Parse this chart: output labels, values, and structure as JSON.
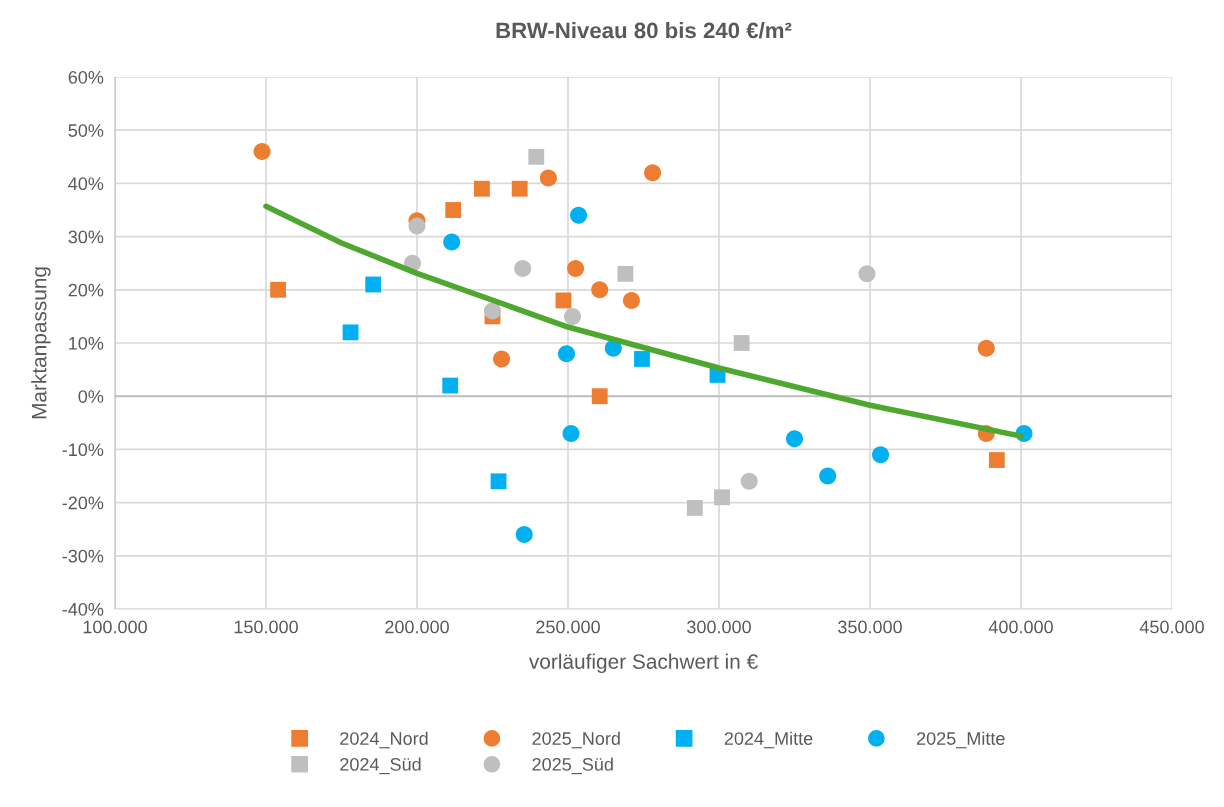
{
  "chart_data": {
    "type": "scatter",
    "title": "BRW-Niveau 80 bis 240 €/m²",
    "xlabel": "vorläufiger Sachwert in €",
    "ylabel": "Marktanpassung",
    "xlim": [
      100000,
      450000
    ],
    "xticks": [
      {
        "value": 100000,
        "label": "100.000"
      },
      {
        "value": 150000,
        "label": "150.000"
      },
      {
        "value": 200000,
        "label": "200.000"
      },
      {
        "value": 250000,
        "label": "250.000"
      },
      {
        "value": 300000,
        "label": "300.000"
      },
      {
        "value": 350000,
        "label": "350.000"
      },
      {
        "value": 400000,
        "label": "400.000"
      },
      {
        "value": 450000,
        "label": "450.000"
      }
    ],
    "ylim": [
      -40,
      60
    ],
    "yticks": [
      {
        "value": -40,
        "label": "-40%"
      },
      {
        "value": -30,
        "label": "-30%"
      },
      {
        "value": -20,
        "label": "-20%"
      },
      {
        "value": -10,
        "label": "-10%"
      },
      {
        "value": 0,
        "label": "0%"
      },
      {
        "value": 10,
        "label": "10%"
      },
      {
        "value": 20,
        "label": "20%"
      },
      {
        "value": 30,
        "label": "30%"
      },
      {
        "value": 40,
        "label": "40%"
      },
      {
        "value": 50,
        "label": "50%"
      },
      {
        "value": 60,
        "label": "60%"
      }
    ],
    "grid": true,
    "legend": "bottom",
    "series": [
      {
        "name": "2024_Nord",
        "color": "#ed7d31",
        "marker": "square",
        "x": [
          154000,
          212000,
          221500,
          234000,
          225000,
          248500,
          260500,
          392000
        ],
        "values": [
          20,
          35,
          39,
          39,
          15,
          18,
          0,
          -12
        ]
      },
      {
        "name": "2025_Nord",
        "color": "#ed7d31",
        "marker": "circle",
        "x": [
          148700,
          200000,
          243500,
          278000,
          252500,
          260500,
          271000,
          228000,
          388500,
          388500
        ],
        "values": [
          46,
          33,
          41,
          42,
          24,
          20,
          18,
          7,
          9,
          -7
        ]
      },
      {
        "name": "2024_Mitte",
        "color": "#00b0f0",
        "marker": "square",
        "x": [
          178000,
          185500,
          211000,
          227000,
          274500,
          299500
        ],
        "values": [
          12,
          21,
          2,
          -16,
          7,
          4
        ]
      },
      {
        "name": "2025_Mitte",
        "color": "#00b0f0",
        "marker": "circle",
        "x": [
          211500,
          253500,
          249500,
          265000,
          251000,
          235500,
          325000,
          336000,
          353500,
          401000
        ],
        "values": [
          29,
          34,
          8,
          9,
          -7,
          -26,
          -8,
          -15,
          -11,
          -7
        ]
      },
      {
        "name": "2024_Süd",
        "color": "#bfbfbf",
        "marker": "square",
        "x": [
          239500,
          269000,
          307500,
          292000,
          301000
        ],
        "values": [
          45,
          23,
          10,
          -21,
          -19
        ]
      },
      {
        "name": "2025_Süd",
        "color": "#bfbfbf",
        "marker": "circle",
        "x": [
          200000,
          198500,
          235000,
          225000,
          251500,
          349000,
          310000
        ],
        "values": [
          32,
          25,
          24,
          16,
          15,
          23,
          -16
        ]
      },
      {
        "type": "line",
        "color": "#4ea72e",
        "marker": "none",
        "line_style": "solid",
        "x": [
          150000,
          175000,
          200000,
          250000,
          300000,
          350000,
          400000
        ],
        "values": [
          35.7,
          28.8,
          23.1,
          13,
          5.3,
          -1.7,
          -7.5
        ]
      }
    ]
  }
}
